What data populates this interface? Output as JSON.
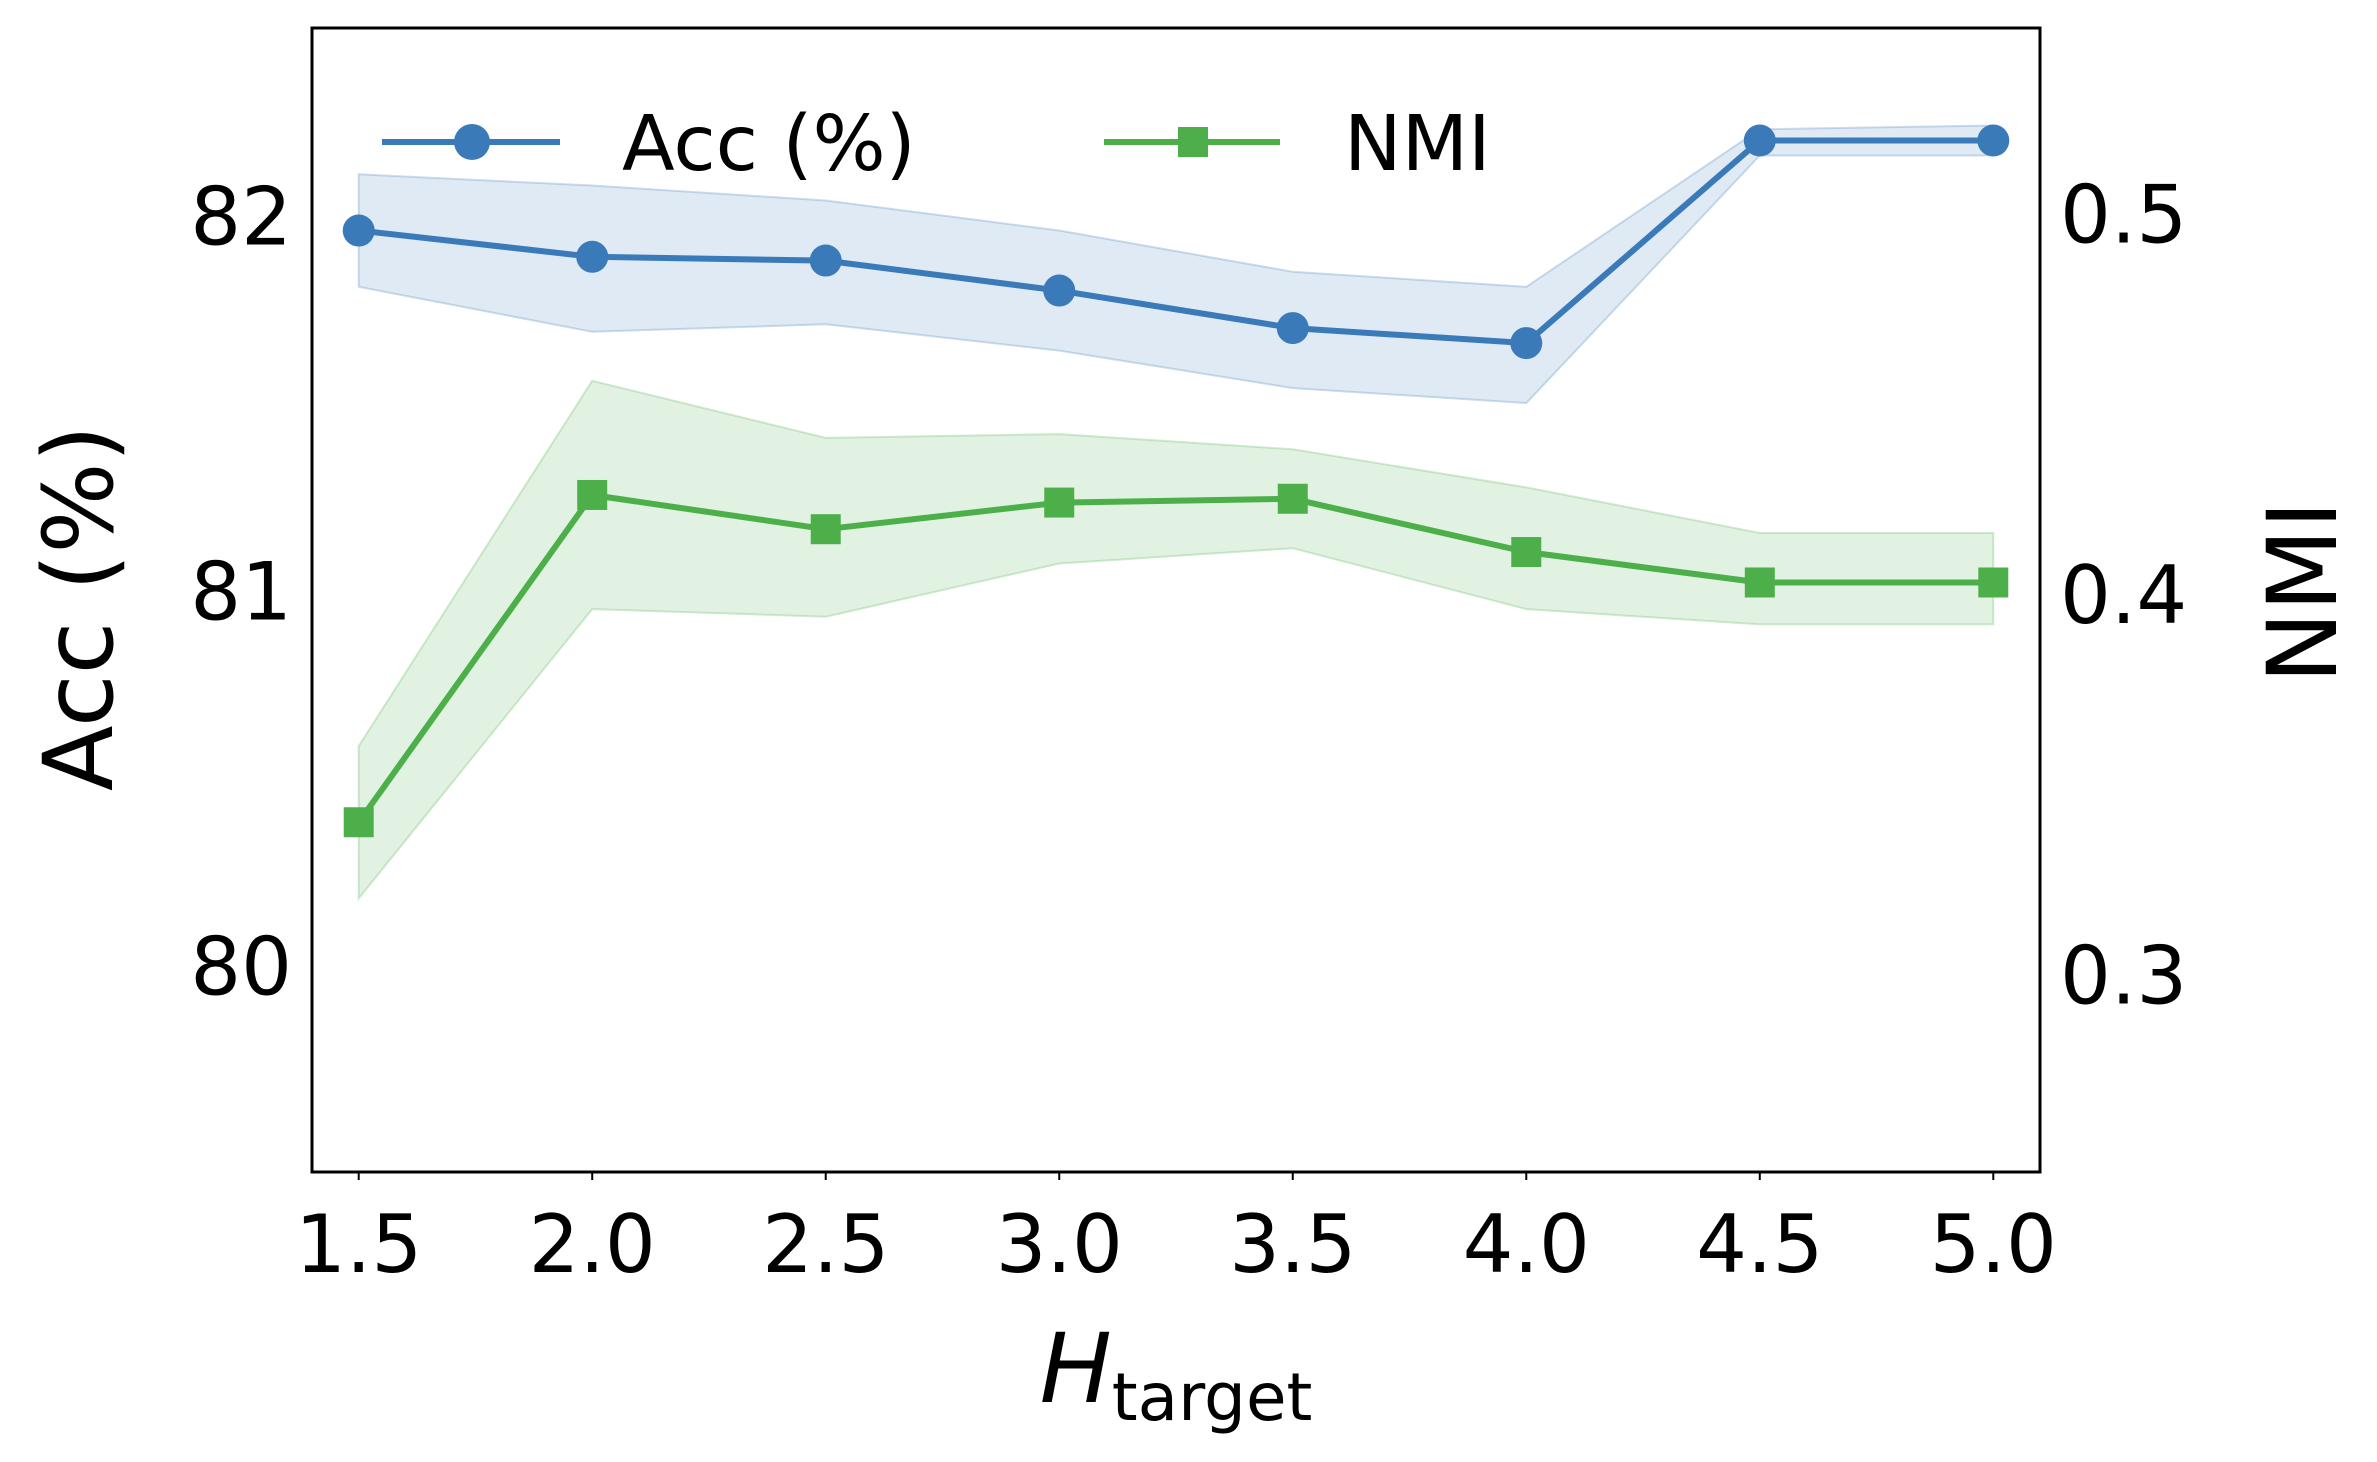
{
  "chart_data": {
    "type": "line",
    "x": [
      1.5,
      2.0,
      2.5,
      3.0,
      3.5,
      4.0,
      4.5,
      5.0
    ],
    "xtick_labels": [
      "1.5",
      "2.0",
      "2.5",
      "3.0",
      "3.5",
      "4.0",
      "4.5",
      "5.0"
    ],
    "xlim": [
      1.4,
      5.1
    ],
    "xlabel_main": "H",
    "xlabel_sub": "target",
    "left_axis": {
      "label": "Acc (%)",
      "ylim": [
        79.45,
        82.5
      ],
      "ticks": [
        80,
        81,
        82
      ],
      "tick_labels": [
        "80",
        "81",
        "82"
      ]
    },
    "right_axis": {
      "label": "NMI",
      "ylim": [
        0.2481,
        0.5487
      ],
      "ticks": [
        0.3,
        0.4,
        0.5
      ],
      "tick_labels": [
        "0.3",
        "0.4",
        "0.5"
      ]
    },
    "series": [
      {
        "name": "Acc (%)",
        "axis": "left",
        "color": "#3a7ab8",
        "marker": "circle",
        "values": [
          81.96,
          81.89,
          81.88,
          81.8,
          81.7,
          81.66,
          82.2,
          82.2
        ],
        "band_upper": [
          82.11,
          82.08,
          82.04,
          81.96,
          81.85,
          81.81,
          82.23,
          82.24
        ],
        "band_lower": [
          81.81,
          81.69,
          81.71,
          81.64,
          81.54,
          81.5,
          82.16,
          82.16
        ]
      },
      {
        "name": "NMI",
        "axis": "right",
        "color": "#4daf4a",
        "marker": "square",
        "values": [
          0.34,
          0.426,
          0.417,
          0.424,
          0.425,
          0.411,
          0.403,
          0.403
        ],
        "band_upper": [
          0.36,
          0.456,
          0.441,
          0.442,
          0.438,
          0.428,
          0.416,
          0.416
        ],
        "band_lower": [
          0.32,
          0.396,
          0.394,
          0.408,
          0.412,
          0.396,
          0.392,
          0.392
        ]
      }
    ],
    "legend": {
      "placement": "top-left",
      "columns": 2
    },
    "grid": false
  }
}
